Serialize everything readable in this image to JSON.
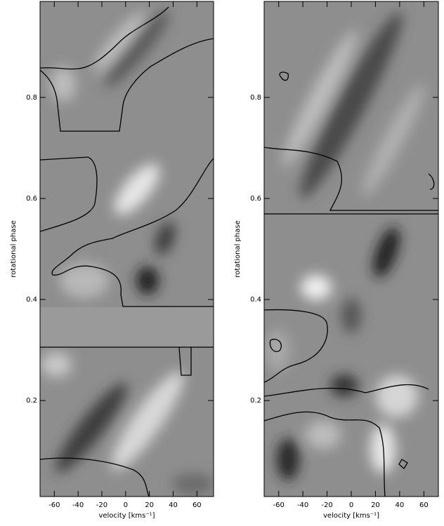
{
  "chart_data": [
    {
      "type": "heatmap",
      "xlabel": "velocity [kms⁻¹]",
      "ylabel": "rotational phase",
      "xlim": [
        -72,
        74
      ],
      "ylim": [
        0.01,
        0.99
      ],
      "xticks": [
        -60,
        -40,
        -20,
        0,
        20,
        40,
        60
      ],
      "yticks": [
        0.2,
        0.4,
        0.6,
        0.8
      ]
    },
    {
      "type": "heatmap",
      "xlabel": "velocity [kms⁻¹]",
      "ylabel": "rotational phase",
      "xlim": [
        -72,
        72
      ],
      "ylim": [
        0.01,
        0.99
      ],
      "xticks": [
        -60,
        -40,
        -20,
        0,
        20,
        40,
        60
      ],
      "yticks": [
        0.2,
        0.4,
        0.6,
        0.8
      ]
    }
  ]
}
